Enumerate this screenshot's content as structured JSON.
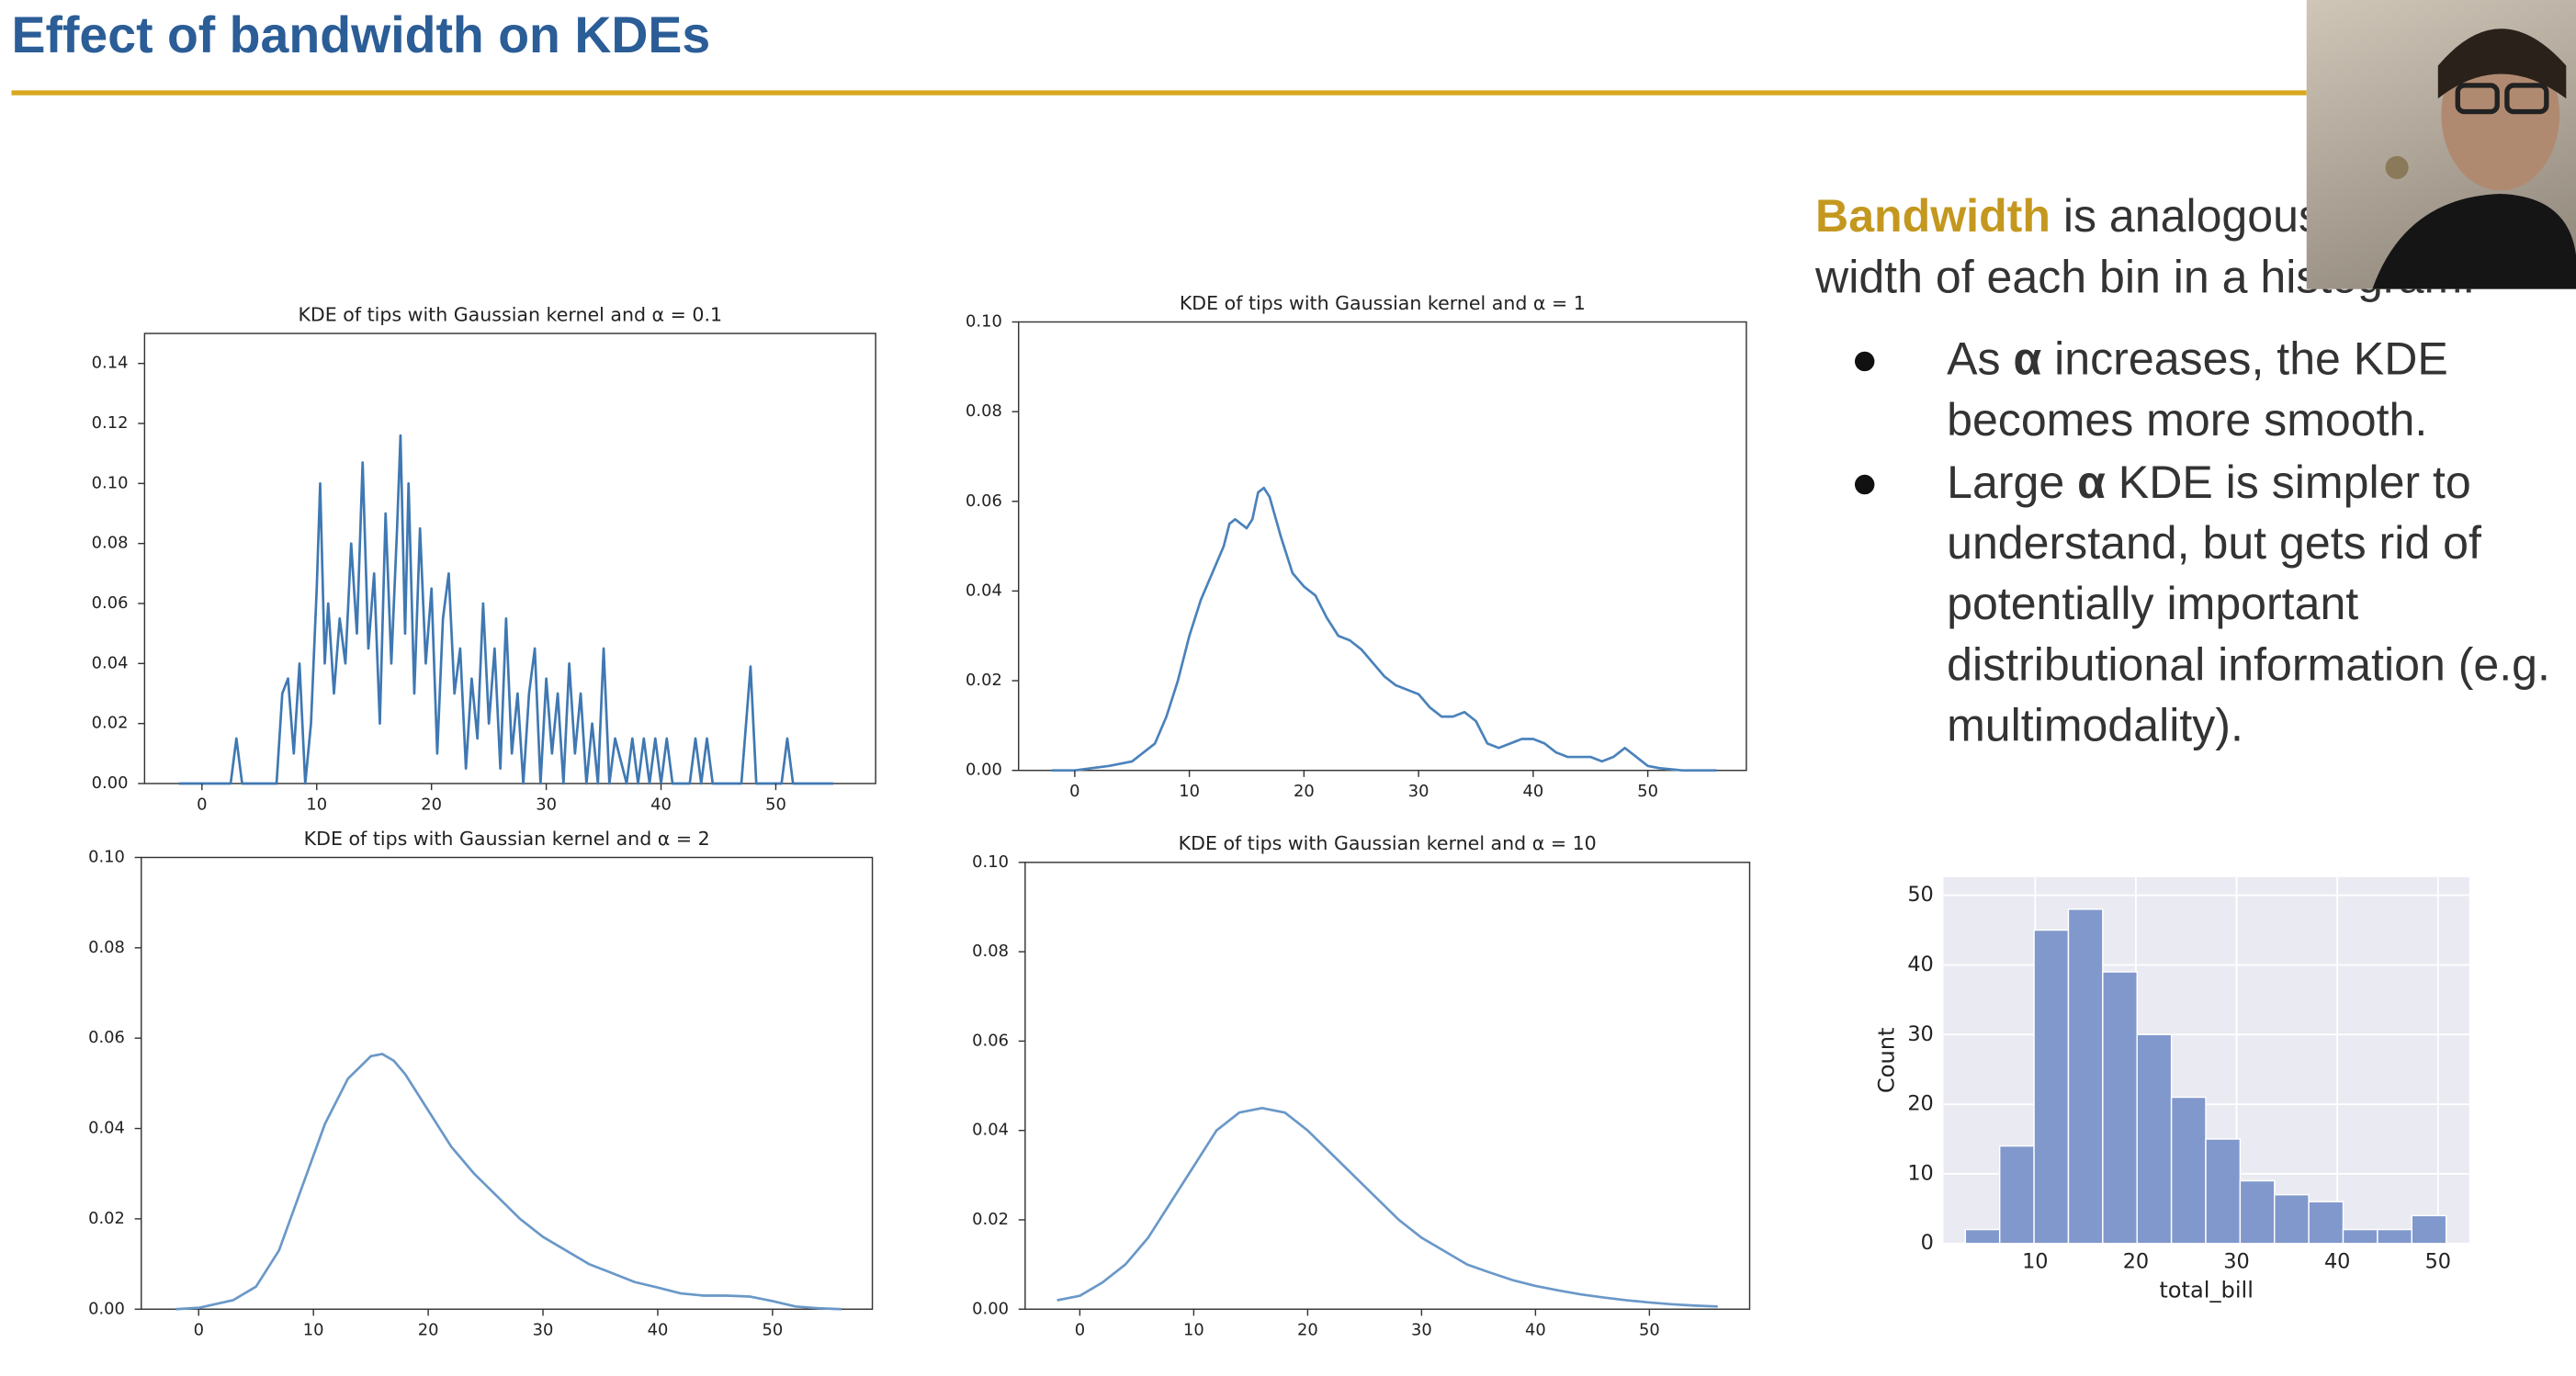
{
  "slide": {
    "title": "Effect of bandwidth on KDEs",
    "intro": {
      "term": "Bandwidth",
      "rest": " is analogous to the width of each bin in a histogram."
    },
    "bullets": [
      [
        "As ",
        "α",
        " increases, the KDE becomes more smooth."
      ],
      [
        "Large ",
        "α",
        " KDE is simpler to understand, but gets rid of potentially important distributional information (e.g. multimodality)."
      ]
    ]
  },
  "chart_data": [
    {
      "type": "line",
      "title": "KDE of tips with Gaussian kernel and α = 0.1",
      "color": "#3f78b2",
      "x": [
        -2,
        2.5,
        3,
        3.5,
        6.5,
        7,
        7.5,
        8,
        8.5,
        9,
        9.5,
        10,
        10.3,
        10.7,
        11,
        11.5,
        12,
        12.5,
        13,
        13.5,
        14,
        14.5,
        15,
        15.5,
        16,
        16.5,
        17,
        17.3,
        17.7,
        18,
        18.5,
        19,
        19.5,
        20,
        20.5,
        21,
        21.5,
        22,
        22.5,
        23,
        23.5,
        24,
        24.5,
        25,
        25.5,
        26,
        26.5,
        27,
        27.5,
        28,
        28.5,
        29,
        29.5,
        30,
        30.5,
        31,
        31.5,
        32,
        32.5,
        33,
        33.5,
        34,
        34.5,
        35,
        35.5,
        36,
        37,
        37.5,
        38,
        38.5,
        39,
        39.5,
        40,
        40.5,
        41,
        42.5,
        43,
        43.5,
        44,
        44.5,
        47,
        47.8,
        48.3,
        50.5,
        51,
        51.5,
        55
      ],
      "values": [
        0,
        0,
        0.015,
        0,
        0,
        0.03,
        0.035,
        0.01,
        0.04,
        0,
        0.02,
        0.065,
        0.1,
        0.04,
        0.06,
        0.03,
        0.055,
        0.04,
        0.08,
        0.05,
        0.107,
        0.045,
        0.07,
        0.02,
        0.09,
        0.04,
        0.085,
        0.116,
        0.05,
        0.1,
        0.03,
        0.085,
        0.04,
        0.065,
        0.01,
        0.055,
        0.07,
        0.03,
        0.045,
        0.005,
        0.035,
        0.015,
        0.06,
        0.02,
        0.045,
        0.005,
        0.055,
        0.01,
        0.03,
        0,
        0.03,
        0.045,
        0,
        0.035,
        0.01,
        0.03,
        0,
        0.04,
        0.01,
        0.03,
        0,
        0.02,
        0,
        0.045,
        0,
        0.015,
        0,
        0.015,
        0,
        0.015,
        0,
        0.015,
        0,
        0.015,
        0,
        0,
        0.015,
        0,
        0.015,
        0,
        0,
        0.039,
        0,
        0,
        0.015,
        0,
        0
      ],
      "xlim": [
        -5,
        58.7
      ],
      "ylim": [
        0,
        0.15
      ],
      "xticks": [
        0,
        10,
        20,
        30,
        40,
        50
      ],
      "yticks": [
        {
          "value": 0,
          "label": "0.00"
        },
        {
          "value": 0.02,
          "label": "0.02"
        },
        {
          "value": 0.04,
          "label": "0.04"
        },
        {
          "value": 0.06,
          "label": "0.06"
        },
        {
          "value": 0.08,
          "label": "0.08"
        },
        {
          "value": 0.1,
          "label": "0.10"
        },
        {
          "value": 0.12,
          "label": "0.12"
        },
        {
          "value": 0.14,
          "label": "0.14"
        }
      ]
    },
    {
      "type": "line",
      "title": "KDE of tips with Gaussian kernel and α = 1",
      "color": "#4a82bb",
      "x": [
        -2,
        0,
        3,
        5,
        7,
        8,
        9,
        10,
        11,
        12,
        13,
        13.5,
        14,
        14.5,
        15,
        15.5,
        16,
        16.5,
        17,
        18,
        19,
        20,
        21,
        22,
        23,
        24,
        25,
        26,
        27,
        28,
        29,
        30,
        31,
        32,
        33,
        34,
        35,
        36,
        37,
        38,
        39,
        40,
        41,
        42,
        43,
        44,
        45,
        46,
        47,
        48,
        49,
        50,
        51,
        53,
        56
      ],
      "values": [
        0,
        0,
        0.001,
        0.002,
        0.006,
        0.012,
        0.02,
        0.03,
        0.038,
        0.044,
        0.05,
        0.055,
        0.056,
        0.055,
        0.054,
        0.056,
        0.062,
        0.063,
        0.061,
        0.052,
        0.044,
        0.041,
        0.039,
        0.034,
        0.03,
        0.029,
        0.027,
        0.024,
        0.021,
        0.019,
        0.018,
        0.017,
        0.014,
        0.012,
        0.012,
        0.013,
        0.011,
        0.006,
        0.005,
        0.006,
        0.007,
        0.007,
        0.006,
        0.004,
        0.003,
        0.003,
        0.003,
        0.002,
        0.003,
        0.005,
        0.003,
        0.001,
        0.0005,
        0,
        0
      ],
      "xlim": [
        -4.9,
        58.6
      ],
      "ylim": [
        0,
        0.1
      ],
      "xticks": [
        0,
        10,
        20,
        30,
        40,
        50
      ],
      "yticks": [
        {
          "value": 0,
          "label": "0.00"
        },
        {
          "value": 0.02,
          "label": "0.02"
        },
        {
          "value": 0.04,
          "label": "0.04"
        },
        {
          "value": 0.06,
          "label": "0.06"
        },
        {
          "value": 0.08,
          "label": "0.08"
        },
        {
          "value": 0.1,
          "label": "0.10"
        }
      ]
    },
    {
      "type": "line",
      "title": "KDE of tips with Gaussian kernel and α = 2",
      "color": "#6a98c8",
      "x": [
        -2,
        0,
        3,
        5,
        7,
        9,
        11,
        13,
        15,
        16,
        17,
        18,
        20,
        22,
        24,
        26,
        28,
        30,
        32,
        34,
        36,
        38,
        40,
        42,
        44,
        46,
        48,
        50,
        52,
        54,
        56
      ],
      "values": [
        0,
        0.0003,
        0.002,
        0.005,
        0.013,
        0.027,
        0.041,
        0.051,
        0.056,
        0.0565,
        0.055,
        0.052,
        0.044,
        0.036,
        0.03,
        0.025,
        0.02,
        0.016,
        0.013,
        0.01,
        0.008,
        0.006,
        0.0048,
        0.0035,
        0.003,
        0.003,
        0.0028,
        0.0018,
        0.0006,
        0.0002,
        0
      ],
      "xlim": [
        -5,
        58.7
      ],
      "ylim": [
        0,
        0.1
      ],
      "xticks": [
        0,
        10,
        20,
        30,
        40,
        50
      ],
      "yticks": [
        {
          "value": 0,
          "label": "0.00"
        },
        {
          "value": 0.02,
          "label": "0.02"
        },
        {
          "value": 0.04,
          "label": "0.04"
        },
        {
          "value": 0.06,
          "label": "0.06"
        },
        {
          "value": 0.08,
          "label": "0.08"
        },
        {
          "value": 0.1,
          "label": "0.10"
        }
      ]
    },
    {
      "type": "line",
      "title": "KDE of tips with Gaussian kernel and α = 10",
      "color": "#6a98c8",
      "x": [
        -2,
        0,
        2,
        4,
        6,
        8,
        10,
        12,
        14,
        16,
        18,
        20,
        22,
        24,
        26,
        28,
        30,
        32,
        34,
        36,
        38,
        40,
        42,
        44,
        46,
        48,
        50,
        52,
        54,
        56
      ],
      "values": [
        0.002,
        0.003,
        0.006,
        0.01,
        0.016,
        0.024,
        0.032,
        0.04,
        0.044,
        0.045,
        0.044,
        0.04,
        0.035,
        0.03,
        0.025,
        0.02,
        0.016,
        0.013,
        0.01,
        0.0082,
        0.0065,
        0.0052,
        0.0042,
        0.0033,
        0.0026,
        0.002,
        0.0015,
        0.0011,
        0.0008,
        0.0006
      ],
      "xlim": [
        -4.8,
        58.8
      ],
      "ylim": [
        0,
        0.1
      ],
      "xticks": [
        0,
        10,
        20,
        30,
        40,
        50
      ],
      "yticks": [
        {
          "value": 0,
          "label": "0.00"
        },
        {
          "value": 0.02,
          "label": "0.02"
        },
        {
          "value": 0.04,
          "label": "0.04"
        },
        {
          "value": 0.06,
          "label": "0.06"
        },
        {
          "value": 0.08,
          "label": "0.08"
        },
        {
          "value": 0.1,
          "label": "0.10"
        }
      ]
    },
    {
      "type": "histogram",
      "xlabel": "total_bill",
      "ylabel": "Count",
      "color": "#8198cc",
      "grid": true,
      "bins": [
        3.07,
        6.48,
        9.89,
        13.3,
        16.71,
        20.12,
        23.53,
        26.94,
        30.35,
        33.76,
        37.17,
        40.58,
        43.99,
        47.4,
        50.81
      ],
      "values": [
        2,
        14,
        45,
        48,
        39,
        30,
        21,
        15,
        9,
        7,
        6,
        2,
        2,
        4
      ],
      "xlim": [
        0.9,
        53.1
      ],
      "ylim": [
        0,
        52.6
      ],
      "xticks": [
        10,
        20,
        30,
        40,
        50
      ],
      "yticks": [
        0,
        10,
        20,
        30,
        40,
        50
      ]
    }
  ]
}
